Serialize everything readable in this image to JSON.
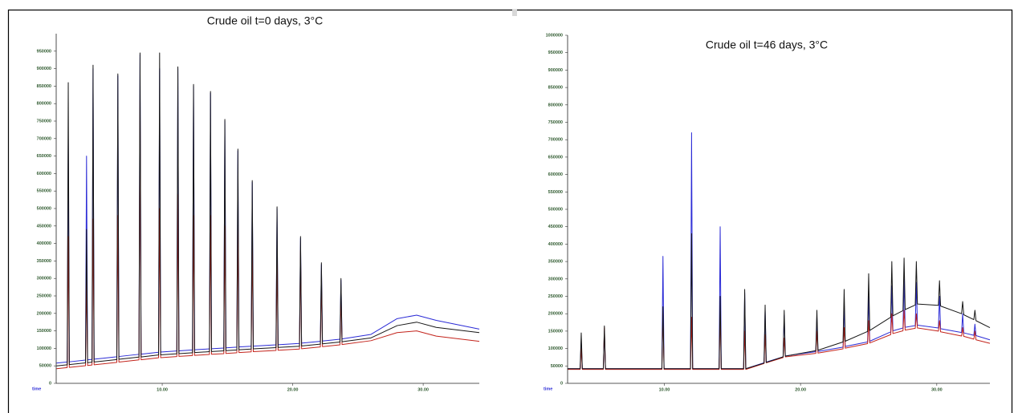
{
  "chart_data": [
    {
      "type": "line",
      "title": "Crude oil t=0 days, 3°C",
      "x_label": "time",
      "x": [
        1.9,
        2.72,
        2.8,
        2.88,
        4.12,
        4.2,
        4.28,
        4.62,
        4.7,
        4.78,
        6.52,
        6.6,
        6.68,
        8.22,
        8.3,
        8.38,
        9.72,
        9.8,
        9.88,
        11.12,
        11.2,
        11.28,
        12.32,
        12.4,
        12.48,
        13.62,
        13.7,
        13.78,
        14.72,
        14.8,
        14.88,
        15.72,
        15.8,
        15.88,
        16.82,
        16.9,
        16.98,
        18.72,
        18.8,
        18.88,
        20.52,
        20.6,
        20.68,
        22.12,
        22.2,
        22.28,
        23.62,
        23.7,
        23.78,
        26,
        28,
        29.5,
        31,
        34.3
      ],
      "series": [
        {
          "color": "#2b2bd6",
          "values": [
            58000,
            61000,
            700000,
            61500,
            66500,
            650000,
            67000,
            68500,
            900000,
            69000,
            76000,
            880000,
            76700,
            83000,
            940000,
            83500,
            89000,
            900000,
            89500,
            92500,
            900000,
            93000,
            95500,
            850000,
            96000,
            98500,
            830000,
            99000,
            101000,
            750000,
            101500,
            103500,
            665000,
            104000,
            106000,
            575000,
            106500,
            110000,
            500000,
            110500,
            114000,
            415000,
            115000,
            120000,
            340000,
            121000,
            126000,
            295000,
            127000,
            140000,
            185000,
            195000,
            180000,
            155000
          ]
        },
        {
          "color": "#c3231b",
          "values": [
            42000,
            45000,
            420000,
            45500,
            50500,
            300000,
            51000,
            52500,
            470000,
            53000,
            60000,
            480000,
            60700,
            67000,
            810000,
            67500,
            73000,
            500000,
            73500,
            76500,
            540000,
            77000,
            79500,
            480000,
            80000,
            82500,
            480000,
            83000,
            85000,
            450000,
            85500,
            87500,
            450000,
            88000,
            90000,
            400000,
            90500,
            94000,
            350000,
            94500,
            98000,
            380000,
            99000,
            104000,
            300000,
            105000,
            110000,
            250000,
            111000,
            122000,
            145000,
            150000,
            135000,
            120000
          ]
        },
        {
          "color": "#161616",
          "values": [
            50000,
            53000,
            860000,
            53500,
            58500,
            440000,
            59000,
            60500,
            910000,
            61000,
            68000,
            885000,
            68700,
            75000,
            945000,
            75500,
            81000,
            945000,
            81500,
            84500,
            905000,
            85000,
            87500,
            855000,
            88000,
            90500,
            835000,
            91000,
            93000,
            755000,
            93500,
            95500,
            670000,
            96000,
            98000,
            580000,
            98500,
            102000,
            505000,
            102500,
            106000,
            420000,
            107000,
            112000,
            345000,
            113000,
            118000,
            300000,
            119000,
            130000,
            165000,
            175000,
            160000,
            145000
          ]
        }
      ],
      "xlim": [
        1.875,
        34.3
      ],
      "xticks": [
        {
          "value": 10,
          "label": "10.00"
        },
        {
          "value": 20,
          "label": "20.00"
        },
        {
          "value": 30,
          "label": "30.00"
        }
      ],
      "ylim": [
        0,
        1000000
      ],
      "yticks": [
        0,
        50000,
        100000,
        150000,
        200000,
        250000,
        300000,
        350000,
        400000,
        450000,
        500000,
        550000,
        600000,
        650000,
        700000,
        750000,
        800000,
        850000,
        900000,
        950000
      ]
    },
    {
      "type": "line",
      "title": "Crude oil t=46 days, 3°C",
      "x_label": "time",
      "x": [
        2.9,
        3.82,
        3.9,
        3.98,
        5.52,
        5.6,
        5.68,
        9.82,
        9.9,
        9.98,
        11.92,
        12,
        12.08,
        14.02,
        14.1,
        14.18,
        15.82,
        15.9,
        15.98,
        17.32,
        17.4,
        17.48,
        18.72,
        18.8,
        18.88,
        21.12,
        21.2,
        21.28,
        23.12,
        23.2,
        23.28,
        24.92,
        25,
        25.08,
        26.62,
        26.7,
        26.78,
        27.52,
        27.6,
        27.68,
        28.42,
        28.5,
        28.58,
        30.12,
        30.2,
        30.28,
        31.82,
        31.9,
        31.98,
        32.72,
        32.8,
        32.88,
        33.9
      ],
      "series": [
        {
          "color": "#2b2bd6",
          "values": [
            42000,
            42000,
            120000,
            42000,
            42000,
            150000,
            42000,
            42000,
            365000,
            42000,
            42000,
            720000,
            42000,
            42000,
            450000,
            42000,
            42000,
            260000,
            42000,
            59000,
            210000,
            61000,
            76000,
            195000,
            78500,
            91000,
            190000,
            91500,
            104000,
            230000,
            106000,
            119000,
            250000,
            121000,
            148000,
            280000,
            151000,
            159000,
            300000,
            161000,
            166000,
            290000,
            167000,
            159000,
            250000,
            157000,
            146000,
            200000,
            145000,
            138000,
            170000,
            137000,
            125000
          ]
        },
        {
          "color": "#c3231b",
          "values": [
            40000,
            40000,
            100000,
            40000,
            40000,
            160000,
            40000,
            40000,
            200000,
            40000,
            40000,
            190000,
            40000,
            40000,
            200000,
            40000,
            40000,
            150000,
            40000,
            57000,
            140000,
            59000,
            74000,
            130000,
            76000,
            86000,
            150000,
            87000,
            99000,
            160000,
            101000,
            114000,
            180000,
            116000,
            140000,
            200000,
            143000,
            151000,
            210000,
            153000,
            158000,
            200000,
            159000,
            150000,
            180000,
            148000,
            136000,
            160000,
            135000,
            127000,
            150000,
            125000,
            115000
          ]
        },
        {
          "color": "#161616",
          "values": [
            42000,
            42000,
            145000,
            42000,
            42000,
            165000,
            42000,
            42000,
            220000,
            42000,
            42000,
            430000,
            42000,
            42000,
            250000,
            42000,
            42000,
            270000,
            42000,
            58000,
            225000,
            60000,
            76000,
            210000,
            78000,
            94000,
            210000,
            95000,
            119000,
            270000,
            121000,
            149000,
            315000,
            152000,
            190000,
            350000,
            194000,
            209000,
            360000,
            212000,
            225000,
            350000,
            228000,
            224000,
            295000,
            222000,
            200000,
            235000,
            197000,
            183000,
            210000,
            180000,
            160000
          ]
        }
      ],
      "xlim": [
        2.9,
        33.9
      ],
      "xticks": [
        {
          "value": 10,
          "label": "10.00"
        },
        {
          "value": 20,
          "label": "20.00"
        },
        {
          "value": 30,
          "label": "30.00"
        }
      ],
      "ylim": [
        0,
        1000000
      ],
      "yticks": [
        0,
        50000,
        100000,
        150000,
        200000,
        250000,
        300000,
        350000,
        400000,
        450000,
        500000,
        550000,
        600000,
        650000,
        700000,
        750000,
        800000,
        850000,
        900000,
        950000,
        1000000
      ]
    }
  ]
}
